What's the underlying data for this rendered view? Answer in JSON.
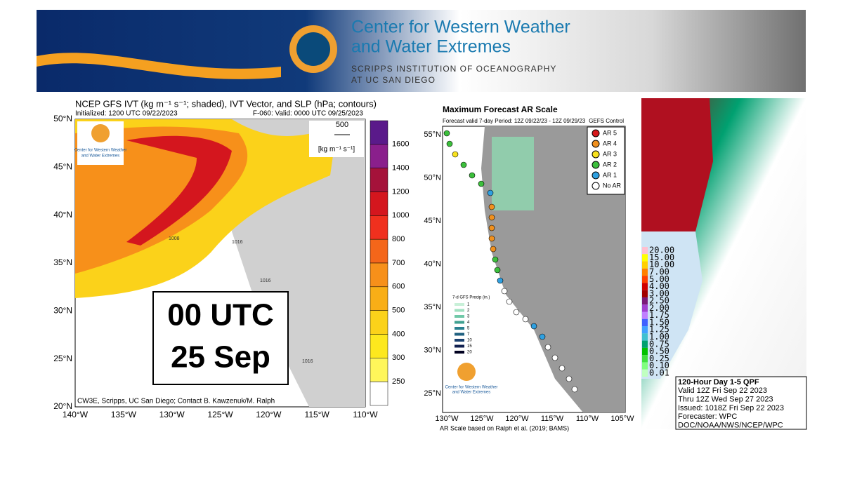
{
  "banner": {
    "title_lines": [
      "Center for Western Weather",
      "and Water Extremes"
    ],
    "subtitle_lines": [
      "SCRIPPS INSTITUTION OF OCEANOGRAPHY",
      "AT UC SAN DIEGO"
    ]
  },
  "ivt_panel": {
    "title": "NCEP GFS IVT (kg m⁻¹ s⁻¹; shaded), IVT Vector, and SLP (hPa; contours)",
    "initialized": "Initialized: 1200 UTC 09/22/2023",
    "valid": "F-060: Valid: 0000 UTC 09/25/2023",
    "time_box": [
      "00 UTC",
      "25 Sep"
    ],
    "vector_ref": "500",
    "vector_unit": "[kg m⁻¹ s⁻¹]",
    "logo_lines": [
      "Center for Western Weather",
      "and Water Extremes"
    ],
    "credit": "CW3E, Scripps, UC San Diego; Contact B. Kawzenuk/M. Ralph",
    "lat_labels": [
      "50°N",
      "45°N",
      "40°N",
      "35°N",
      "30°N",
      "25°N",
      "20°N"
    ],
    "lon_labels": [
      "140°W",
      "135°W",
      "130°W",
      "125°W",
      "120°W",
      "115°W",
      "110°W"
    ],
    "colorbar_labels": [
      "1600",
      "1400",
      "1200",
      "1000",
      "800",
      "700",
      "600",
      "500",
      "400",
      "300",
      "250"
    ],
    "colorbar_colors": [
      "#5a1a8a",
      "#8a1f8c",
      "#a5123a",
      "#d4161e",
      "#f0301e",
      "#f4661a",
      "#f7901a",
      "#f9ae16",
      "#fbd21a",
      "#fde81e",
      "#fff65a",
      "#ffffff"
    ],
    "contour_labels": [
      "1008",
      "1016",
      "1016",
      "1016"
    ]
  },
  "ar_panel": {
    "title": "Maximum Forecast AR Scale",
    "subtitle": "Forecast valid 7-day Period: 12Z 09/22/23 - 12Z 09/29/23",
    "model": "GEFS Control",
    "legend": [
      {
        "label": "AR 5",
        "color": "#d7191c"
      },
      {
        "label": "AR 4",
        "color": "#f0901e"
      },
      {
        "label": "AR 3",
        "color": "#f7e11e"
      },
      {
        "label": "AR 2",
        "color": "#3cbf3c"
      },
      {
        "label": "AR 1",
        "color": "#2fa0e0"
      },
      {
        "label": "No AR",
        "color": "#ffffff"
      }
    ],
    "precip_title": "7-d GFS Precip (in.)",
    "precip_levels": [
      "1",
      "2",
      "3",
      "4",
      "5",
      "7",
      "10",
      "15",
      "20"
    ],
    "logo_lines": [
      "Center for Western Weather",
      "and Water Extremes"
    ],
    "lat_labels": [
      "55°N",
      "50°N",
      "45°N",
      "40°N",
      "35°N",
      "30°N",
      "25°N"
    ],
    "lon_labels": [
      "130°W",
      "125°W",
      "120°W",
      "115°W",
      "110°W",
      "105°W"
    ],
    "footer": "AR Scale based on Ralph et al. (2019; BAMS)"
  },
  "qpf_panel": {
    "legend": [
      {
        "label": "20.00",
        "color": "#ffc0d0"
      },
      {
        "label": "15.00",
        "color": "#ffff00"
      },
      {
        "label": "10.00",
        "color": "#ffd000"
      },
      {
        "label": "7.00",
        "color": "#ff8000"
      },
      {
        "label": "5.00",
        "color": "#ff4000"
      },
      {
        "label": "4.00",
        "color": "#d00000"
      },
      {
        "label": "3.00",
        "color": "#a00000"
      },
      {
        "label": "2.50",
        "color": "#7a1a7a"
      },
      {
        "label": "2.00",
        "color": "#a040d0"
      },
      {
        "label": "1.75",
        "color": "#c080ff"
      },
      {
        "label": "1.50",
        "color": "#4060ff"
      },
      {
        "label": "1.25",
        "color": "#40a0ff"
      },
      {
        "label": "1.00",
        "color": "#40c0d0"
      },
      {
        "label": "0.75",
        "color": "#00a070"
      },
      {
        "label": "0.50",
        "color": "#00c000"
      },
      {
        "label": "0.25",
        "color": "#40e040"
      },
      {
        "label": "0.10",
        "color": "#80ff80"
      },
      {
        "label": "0.01",
        "color": "#c0ffc0"
      }
    ],
    "info_lines": [
      "120-Hour Day 1-5 QPF",
      "Valid 12Z Fri Sep 22 2023",
      "Thru 12Z Wed Sep 27 2023",
      "Issued: 1018Z Fri Sep 22 2023",
      "Forecaster: WPC",
      "DOC/NOAA/NWS/NCEP/WPC"
    ]
  }
}
